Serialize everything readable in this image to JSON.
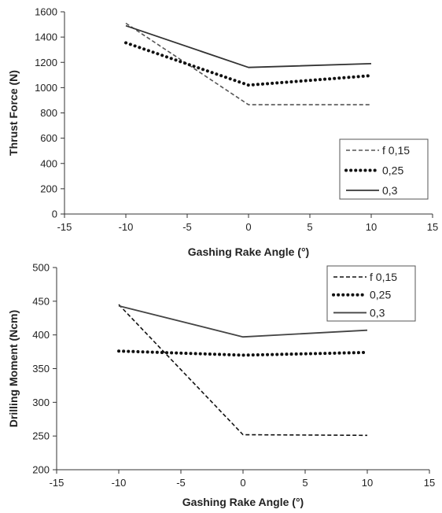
{
  "chart_data": [
    {
      "type": "line",
      "title": "",
      "xlabel": "Gashing Rake Angle (°)",
      "ylabel": "Thrust Force (N)",
      "xlim": [
        -15,
        15
      ],
      "ylim": [
        0,
        1600
      ],
      "xticks": [
        -15,
        -10,
        -5,
        0,
        5,
        10,
        15
      ],
      "yticks": [
        0,
        200,
        400,
        600,
        800,
        1000,
        1200,
        1400,
        1600
      ],
      "grid": false,
      "legend_position": "bottom-right",
      "series": [
        {
          "name": "f 0,15",
          "style": "dashed",
          "color": "#555555",
          "x": [
            -10,
            0,
            10
          ],
          "y": [
            1510,
            865,
            865
          ]
        },
        {
          "name": "0,25",
          "style": "dotted",
          "color": "#111111",
          "x": [
            -10,
            0,
            10
          ],
          "y": [
            1355,
            1020,
            1095
          ]
        },
        {
          "name": "0,3",
          "style": "solid",
          "color": "#333333",
          "x": [
            -10,
            0,
            10
          ],
          "y": [
            1490,
            1160,
            1190
          ]
        }
      ]
    },
    {
      "type": "line",
      "title": "",
      "xlabel": "Gashing Rake Angle (°)",
      "ylabel": "Drilling Moment (Ncm)",
      "xlim": [
        -15,
        15
      ],
      "ylim": [
        200,
        500
      ],
      "xticks": [
        -15,
        -10,
        -5,
        0,
        5,
        10,
        15
      ],
      "yticks": [
        200,
        250,
        300,
        350,
        400,
        450,
        500
      ],
      "grid": false,
      "legend_position": "top-right",
      "series": [
        {
          "name": "f 0,15",
          "style": "dashed",
          "color": "#111111",
          "x": [
            -10,
            0,
            10
          ],
          "y": [
            445,
            252,
            251
          ]
        },
        {
          "name": "0,25",
          "style": "dotted",
          "color": "#111111",
          "x": [
            -10,
            0,
            10
          ],
          "y": [
            376,
            370,
            374
          ]
        },
        {
          "name": "0,3",
          "style": "solid",
          "color": "#444444",
          "x": [
            -10,
            0,
            10
          ],
          "y": [
            443,
            397,
            407
          ]
        }
      ]
    }
  ]
}
